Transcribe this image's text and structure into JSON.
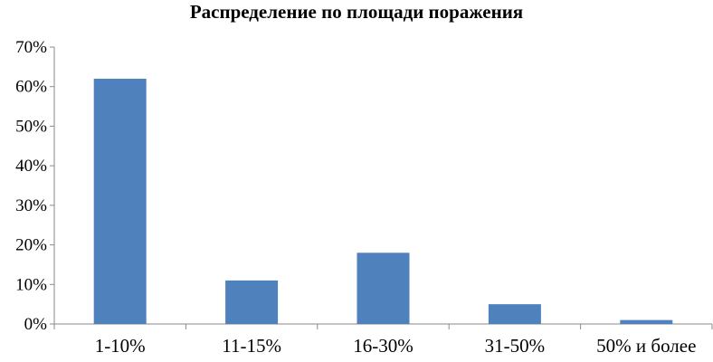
{
  "chart_data": {
    "type": "bar",
    "title": "Распределение по площади поражения",
    "categories": [
      "1-10%",
      "11-15%",
      "16-30%",
      "31-50%",
      "50% и более"
    ],
    "values": [
      62,
      11,
      18,
      5,
      1
    ],
    "ylim": [
      0,
      70
    ],
    "yticks": [
      0,
      10,
      20,
      30,
      40,
      50,
      60,
      70
    ],
    "ytick_labels": [
      "0%",
      "10%",
      "20%",
      "30%",
      "40%",
      "50%",
      "60%",
      "70%"
    ],
    "xlabel": "",
    "ylabel": "",
    "grid": false,
    "legend": "none",
    "bar_color": "#4f81bd"
  }
}
